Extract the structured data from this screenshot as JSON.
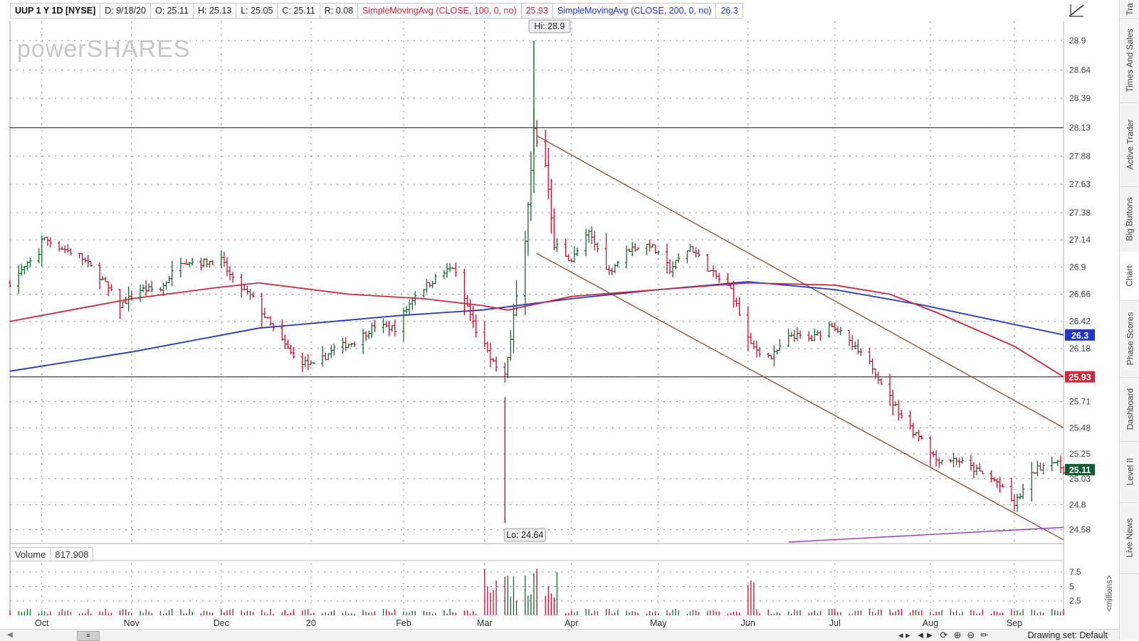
{
  "header": {
    "symbol": "UUP 1 Y 1D [NYSE]",
    "date": "D: 9/18/20",
    "open": "O: 25.11",
    "high": "H: 25.13",
    "low": "L: 25.05",
    "close": "C: 25.11",
    "range": "R: 0.08",
    "sma100_label": "SimpleMovingAvg (CLOSE, 100, 0, no)",
    "sma100_value": "25.93",
    "sma200_label": "SimpleMovingAvg (CLOSE, 200, 0, no)",
    "sma200_value": "26.3"
  },
  "watermark": "powerSHARES",
  "volume_header": {
    "label": "Volume",
    "value": "817,908"
  },
  "right_tabs": [
    "Tra",
    "Times And Sales",
    "Active Trader",
    "Big Buttons",
    "Chart",
    "Phase Scores",
    "Dashboard",
    "Level II",
    "Live News"
  ],
  "active_tab": "Chart",
  "bottom": {
    "drawing_set": "Drawing set: Default"
  },
  "colors": {
    "sma100": "#d0283c",
    "sma200": "#2436c9",
    "up": "#0b6b2b",
    "down": "#c8102e",
    "channel": "#8b5a3c",
    "purple": "#9933cc",
    "last_bg": "#0f5c2e"
  },
  "chart_data": {
    "type": "ohlc",
    "symbol": "UUP",
    "x_labels": [
      "Oct",
      "Nov",
      "Dec",
      "20",
      "Feb",
      "Mar",
      "Apr",
      "May",
      "Jun",
      "Jul",
      "Aug",
      "Sep"
    ],
    "y_ticks": [
      28.9,
      28.64,
      28.39,
      28.13,
      27.88,
      27.63,
      27.38,
      27.14,
      26.9,
      26.66,
      26.42,
      26.18,
      25.93,
      25.71,
      25.48,
      25.25,
      25.03,
      24.8,
      24.58
    ],
    "y_range": [
      24.47,
      29.07
    ],
    "volume_ticks": [
      "7.5",
      "5",
      "2.5"
    ],
    "volume_unit": "<millions>",
    "annotations": {
      "high": {
        "label": "Hi: 28.9",
        "value": 28.9,
        "date": "2020-03-19"
      },
      "low": {
        "label": "Lo: 24.64",
        "value": 24.64,
        "date": "2020-03-09"
      }
    },
    "horizontal_lines": [
      28.13,
      25.93
    ],
    "last_price": "25.11",
    "sma100_last": "25.93",
    "sma200_last": "26.3",
    "price_path": [
      [
        "2019-09-23",
        26.84
      ],
      [
        "2019-09-30",
        27.02
      ],
      [
        "2019-10-01",
        27.16
      ],
      [
        "2019-10-07",
        27.08
      ],
      [
        "2019-10-14",
        27.0
      ],
      [
        "2019-10-21",
        26.82
      ],
      [
        "2019-10-28",
        26.56
      ],
      [
        "2019-11-04",
        26.7
      ],
      [
        "2019-11-11",
        26.7
      ],
      [
        "2019-11-18",
        26.96
      ],
      [
        "2019-11-25",
        26.94
      ],
      [
        "2019-12-02",
        26.96
      ],
      [
        "2019-12-06",
        26.78
      ],
      [
        "2019-12-13",
        26.62
      ],
      [
        "2019-12-20",
        26.35
      ],
      [
        "2019-12-27",
        26.1
      ],
      [
        "2020-01-03",
        26.02
      ],
      [
        "2020-01-10",
        26.18
      ],
      [
        "2020-01-17",
        26.24
      ],
      [
        "2020-01-24",
        26.38
      ],
      [
        "2020-01-31",
        26.36
      ],
      [
        "2020-02-07",
        26.66
      ],
      [
        "2020-02-14",
        26.8
      ],
      [
        "2020-02-20",
        26.9
      ],
      [
        "2020-02-28",
        26.34
      ],
      [
        "2020-03-06",
        26.02
      ],
      [
        "2020-03-09",
        25.93
      ],
      [
        "2020-03-12",
        26.46
      ],
      [
        "2020-03-16",
        27.1
      ],
      [
        "2020-03-19",
        28.1
      ],
      [
        "2020-03-23",
        27.8
      ],
      [
        "2020-03-26",
        27.1
      ],
      [
        "2020-04-01",
        26.96
      ],
      [
        "2020-04-07",
        27.2
      ],
      [
        "2020-04-14",
        26.86
      ],
      [
        "2020-04-21",
        27.06
      ],
      [
        "2020-04-28",
        27.1
      ],
      [
        "2020-05-05",
        26.88
      ],
      [
        "2020-05-12",
        27.08
      ],
      [
        "2020-05-19",
        26.86
      ],
      [
        "2020-05-26",
        26.7
      ],
      [
        "2020-06-02",
        26.2
      ],
      [
        "2020-06-09",
        26.1
      ],
      [
        "2020-06-16",
        26.3
      ],
      [
        "2020-06-23",
        26.26
      ],
      [
        "2020-06-30",
        26.4
      ],
      [
        "2020-07-07",
        26.2
      ],
      [
        "2020-07-14",
        26.02
      ],
      [
        "2020-07-21",
        25.7
      ],
      [
        "2020-07-28",
        25.45
      ],
      [
        "2020-07-31",
        25.4
      ],
      [
        "2020-08-05",
        25.2
      ],
      [
        "2020-08-12",
        25.2
      ],
      [
        "2020-08-19",
        25.1
      ],
      [
        "2020-08-26",
        25.0
      ],
      [
        "2020-09-01",
        24.8
      ],
      [
        "2020-09-08",
        25.1
      ],
      [
        "2020-09-14",
        25.2
      ],
      [
        "2020-09-18",
        25.11
      ]
    ],
    "sma100_path": [
      [
        "2019-09-20",
        26.42
      ],
      [
        "2019-11-01",
        26.62
      ],
      [
        "2019-12-01",
        26.72
      ],
      [
        "2019-12-15",
        26.76
      ],
      [
        "2020-01-15",
        26.66
      ],
      [
        "2020-02-10",
        26.62
      ],
      [
        "2020-03-01",
        26.56
      ],
      [
        "2020-03-10",
        26.52
      ],
      [
        "2020-04-01",
        26.64
      ],
      [
        "2020-05-01",
        26.7
      ],
      [
        "2020-06-01",
        26.76
      ],
      [
        "2020-07-01",
        26.74
      ],
      [
        "2020-07-20",
        26.66
      ],
      [
        "2020-08-05",
        26.5
      ],
      [
        "2020-09-01",
        26.2
      ],
      [
        "2020-09-18",
        25.93
      ]
    ],
    "sma200_path": [
      [
        "2019-09-20",
        25.98
      ],
      [
        "2019-11-01",
        26.15
      ],
      [
        "2019-12-15",
        26.36
      ],
      [
        "2020-02-01",
        26.47
      ],
      [
        "2020-03-01",
        26.52
      ],
      [
        "2020-04-01",
        26.62
      ],
      [
        "2020-05-01",
        26.7
      ],
      [
        "2020-06-01",
        26.77
      ],
      [
        "2020-07-01",
        26.7
      ],
      [
        "2020-08-01",
        26.56
      ],
      [
        "2020-09-18",
        26.3
      ]
    ],
    "channel_lines": [
      {
        "from": [
          "2020-03-20",
          28.06
        ],
        "to": [
          "2020-09-18",
          25.48
        ]
      },
      {
        "from": [
          "2020-03-20",
          27.02
        ],
        "to": [
          "2020-09-18",
          24.49
        ]
      }
    ],
    "purple_line": {
      "from": [
        "2020-06-15",
        24.47
      ],
      "to": [
        "2020-09-18",
        24.6
      ]
    }
  }
}
